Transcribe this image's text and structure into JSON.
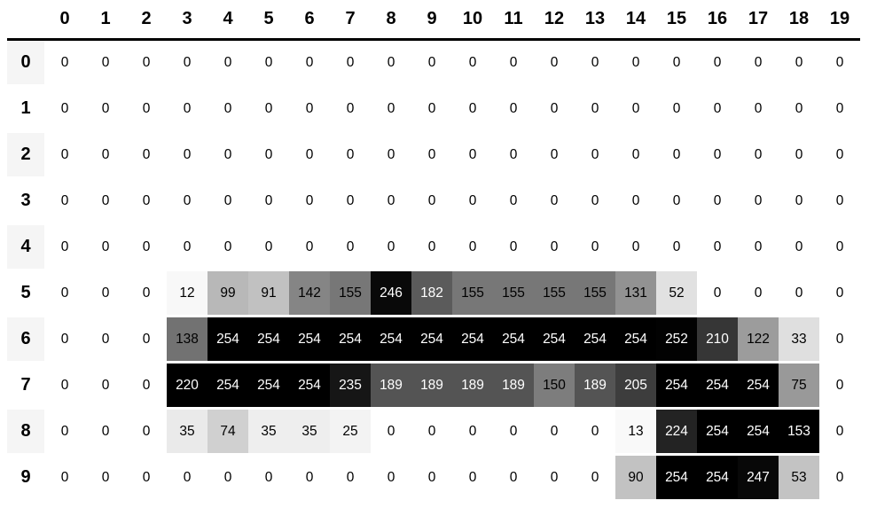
{
  "chart_data": {
    "type": "heatmap",
    "title": "",
    "columns": [
      "0",
      "1",
      "2",
      "3",
      "4",
      "5",
      "6",
      "7",
      "8",
      "9",
      "10",
      "11",
      "12",
      "13",
      "14",
      "15",
      "16",
      "17",
      "18",
      "19"
    ],
    "row_labels": [
      "0",
      "1",
      "2",
      "3",
      "4",
      "5",
      "6",
      "7",
      "8",
      "9"
    ],
    "values": [
      [
        0,
        0,
        0,
        0,
        0,
        0,
        0,
        0,
        0,
        0,
        0,
        0,
        0,
        0,
        0,
        0,
        0,
        0,
        0,
        0
      ],
      [
        0,
        0,
        0,
        0,
        0,
        0,
        0,
        0,
        0,
        0,
        0,
        0,
        0,
        0,
        0,
        0,
        0,
        0,
        0,
        0
      ],
      [
        0,
        0,
        0,
        0,
        0,
        0,
        0,
        0,
        0,
        0,
        0,
        0,
        0,
        0,
        0,
        0,
        0,
        0,
        0,
        0
      ],
      [
        0,
        0,
        0,
        0,
        0,
        0,
        0,
        0,
        0,
        0,
        0,
        0,
        0,
        0,
        0,
        0,
        0,
        0,
        0,
        0
      ],
      [
        0,
        0,
        0,
        0,
        0,
        0,
        0,
        0,
        0,
        0,
        0,
        0,
        0,
        0,
        0,
        0,
        0,
        0,
        0,
        0
      ],
      [
        0,
        0,
        0,
        12,
        99,
        91,
        142,
        155,
        246,
        182,
        155,
        155,
        155,
        155,
        131,
        52,
        0,
        0,
        0,
        0
      ],
      [
        0,
        0,
        0,
        138,
        254,
        254,
        254,
        254,
        254,
        254,
        254,
        254,
        254,
        254,
        254,
        252,
        210,
        122,
        33,
        0
      ],
      [
        0,
        0,
        0,
        220,
        254,
        254,
        254,
        235,
        189,
        189,
        189,
        189,
        150,
        189,
        205,
        254,
        254,
        254,
        75,
        0
      ],
      [
        0,
        0,
        0,
        35,
        74,
        35,
        35,
        25,
        0,
        0,
        0,
        0,
        0,
        0,
        13,
        224,
        254,
        254,
        153,
        0
      ],
      [
        0,
        0,
        0,
        0,
        0,
        0,
        0,
        0,
        0,
        0,
        0,
        0,
        0,
        0,
        90,
        254,
        254,
        247,
        53,
        0
      ]
    ],
    "value_range": [
      0,
      254
    ],
    "normalization": "per-column-max",
    "colormap": {
      "name": "greys-white-to-black",
      "stops": [
        [
          0,
          255
        ],
        [
          0.125,
          240
        ],
        [
          0.25,
          217
        ],
        [
          0.375,
          189
        ],
        [
          0.5,
          150
        ],
        [
          0.625,
          115
        ],
        [
          0.75,
          82
        ],
        [
          0.875,
          37
        ],
        [
          1,
          0
        ]
      ],
      "light_text_threshold": 105,
      "text_on_dark": "#ffffff",
      "text_on_light": "#000000"
    },
    "legend": "none",
    "grid": "off"
  },
  "table_style": {
    "index_stripe_bg": "#f5f5f5",
    "index_plain_bg": "#ffffff",
    "header_rule_color": "#000000",
    "row_gap_color": "#ffffff",
    "zero_cell_bg": "#ffffff"
  }
}
